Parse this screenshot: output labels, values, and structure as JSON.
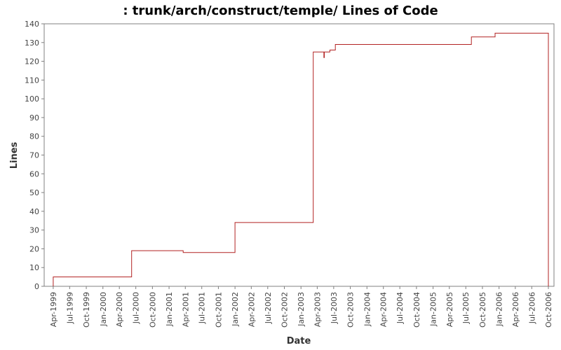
{
  "chart_data": {
    "type": "line",
    "title": ": trunk/arch/construct/temple/ Lines of Code",
    "xlabel": "Date",
    "ylabel": "Lines",
    "ylim": [
      0,
      140
    ],
    "xlim": [
      "1999-02-10",
      "2006-11-01"
    ],
    "y_ticks": [
      0,
      10,
      20,
      30,
      40,
      50,
      60,
      70,
      80,
      90,
      100,
      110,
      120,
      130,
      140
    ],
    "x_ticks": [
      {
        "label": "Apr-1999",
        "date": "1999-04-01"
      },
      {
        "label": "Jul-1999",
        "date": "1999-07-01"
      },
      {
        "label": "Oct-1999",
        "date": "1999-10-01"
      },
      {
        "label": "Jan-2000",
        "date": "2000-01-01"
      },
      {
        "label": "Apr-2000",
        "date": "2000-04-01"
      },
      {
        "label": "Jul-2000",
        "date": "2000-07-01"
      },
      {
        "label": "Oct-2000",
        "date": "2000-10-01"
      },
      {
        "label": "Jan-2001",
        "date": "2001-01-01"
      },
      {
        "label": "Apr-2001",
        "date": "2001-04-01"
      },
      {
        "label": "Jul-2001",
        "date": "2001-07-01"
      },
      {
        "label": "Oct-2001",
        "date": "2001-10-01"
      },
      {
        "label": "Jan-2002",
        "date": "2002-01-01"
      },
      {
        "label": "Apr-2002",
        "date": "2002-04-01"
      },
      {
        "label": "Jul-2002",
        "date": "2002-07-01"
      },
      {
        "label": "Oct-2002",
        "date": "2002-10-01"
      },
      {
        "label": "Jan-2003",
        "date": "2003-01-01"
      },
      {
        "label": "Apr-2003",
        "date": "2003-04-01"
      },
      {
        "label": "Jul-2003",
        "date": "2003-07-01"
      },
      {
        "label": "Oct-2003",
        "date": "2003-10-01"
      },
      {
        "label": "Jan-2004",
        "date": "2004-01-01"
      },
      {
        "label": "Apr-2004",
        "date": "2004-04-01"
      },
      {
        "label": "Jul-2004",
        "date": "2004-07-01"
      },
      {
        "label": "Oct-2004",
        "date": "2004-10-01"
      },
      {
        "label": "Jan-2005",
        "date": "2005-01-01"
      },
      {
        "label": "Apr-2005",
        "date": "2005-04-01"
      },
      {
        "label": "Jul-2005",
        "date": "2005-07-01"
      },
      {
        "label": "Oct-2005",
        "date": "2005-10-01"
      },
      {
        "label": "Jan-2006",
        "date": "2006-01-01"
      },
      {
        "label": "Apr-2006",
        "date": "2006-04-01"
      },
      {
        "label": "Jul-2006",
        "date": "2006-07-01"
      },
      {
        "label": "Oct-2006",
        "date": "2006-10-01"
      }
    ],
    "grid": false,
    "legend": "none",
    "line_style": "step",
    "series": [
      {
        "color": "#b22222",
        "points": [
          {
            "x": "1999-04-01",
            "y": 0
          },
          {
            "x": "1999-04-01",
            "y": 5
          },
          {
            "x": "2000-06-08",
            "y": 5
          },
          {
            "x": "2000-06-08",
            "y": 19
          },
          {
            "x": "2001-03-20",
            "y": 19
          },
          {
            "x": "2001-03-20",
            "y": 18
          },
          {
            "x": "2002-01-01",
            "y": 18
          },
          {
            "x": "2002-01-01",
            "y": 34
          },
          {
            "x": "2003-03-10",
            "y": 34
          },
          {
            "x": "2003-03-10",
            "y": 125
          },
          {
            "x": "2003-05-08",
            "y": 125
          },
          {
            "x": "2003-05-08",
            "y": 122
          },
          {
            "x": "2003-05-10",
            "y": 122
          },
          {
            "x": "2003-05-10",
            "y": 125
          },
          {
            "x": "2003-06-10",
            "y": 125
          },
          {
            "x": "2003-06-10",
            "y": 126
          },
          {
            "x": "2003-07-10",
            "y": 126
          },
          {
            "x": "2003-07-10",
            "y": 129
          },
          {
            "x": "2005-08-01",
            "y": 129
          },
          {
            "x": "2005-08-01",
            "y": 133
          },
          {
            "x": "2005-12-10",
            "y": 133
          },
          {
            "x": "2005-12-10",
            "y": 135
          },
          {
            "x": "2006-10-01",
            "y": 135
          },
          {
            "x": "2006-10-01",
            "y": 0
          }
        ]
      }
    ]
  }
}
